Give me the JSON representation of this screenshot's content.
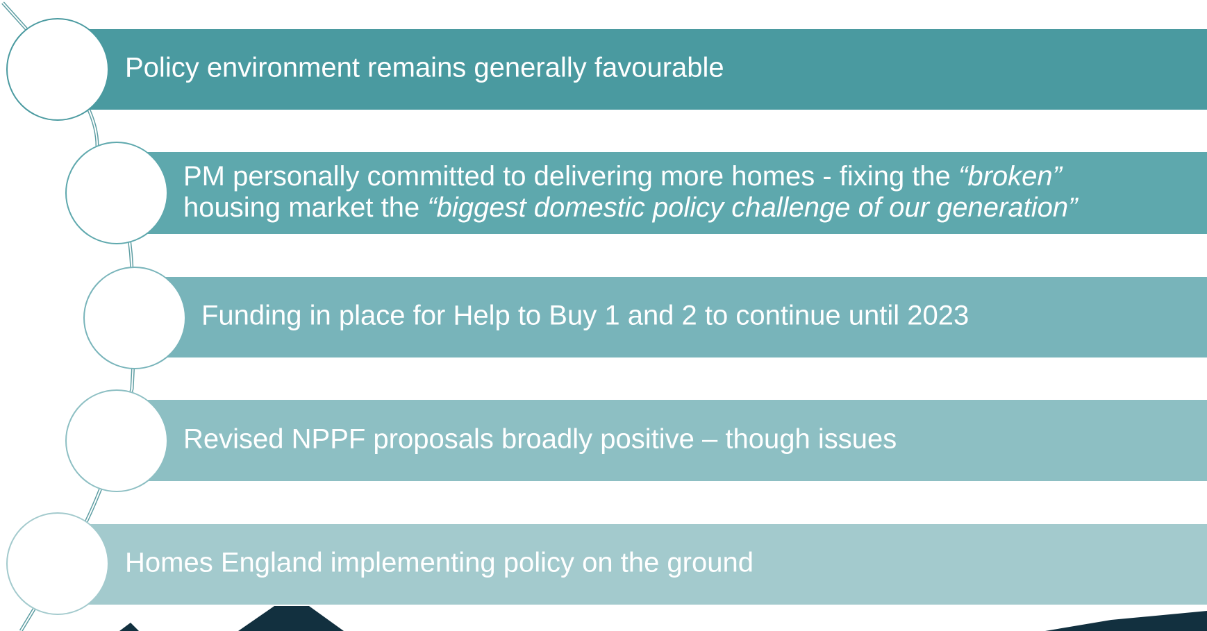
{
  "items": [
    {
      "text": "Policy environment remains generally favourable"
    },
    {
      "lines": [
        [
          "PM personally committed to delivering more homes - fixing the ",
          "“broken”"
        ],
        [
          "housing market the ",
          "“biggest domestic policy challenge of our generation”"
        ]
      ]
    },
    {
      "text": "Funding in place for Help to Buy 1 and 2 to continue until 2023"
    },
    {
      "text": "Revised NPPF proposals broadly positive – though issues"
    },
    {
      "text": "Homes England implementing policy on the ground"
    }
  ]
}
